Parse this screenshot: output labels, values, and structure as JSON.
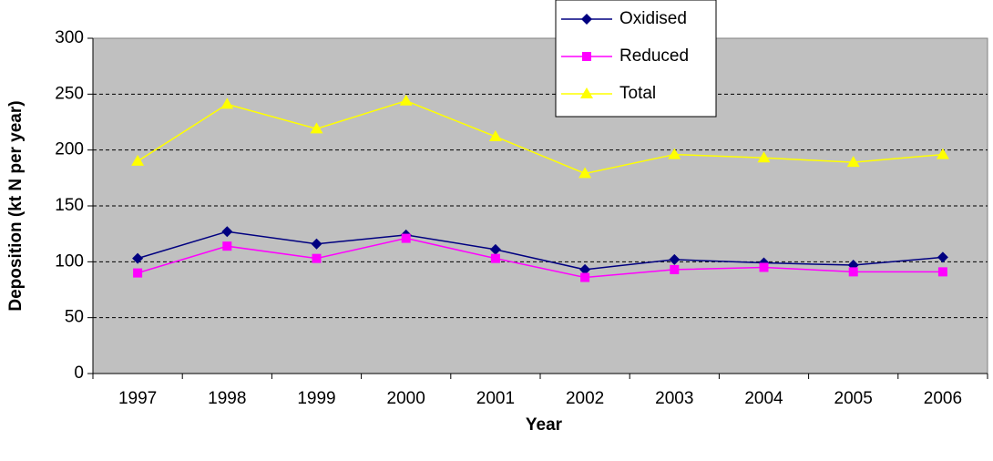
{
  "chart_data": {
    "type": "line",
    "categories": [
      "1997",
      "1998",
      "1999",
      "2000",
      "2001",
      "2002",
      "2003",
      "2004",
      "2005",
      "2006"
    ],
    "series": [
      {
        "name": "Oxidised",
        "color": "#000080",
        "marker": "diamond",
        "values": [
          103,
          127,
          116,
          124,
          111,
          93,
          102,
          99,
          97,
          104
        ]
      },
      {
        "name": "Reduced",
        "color": "#ff00ff",
        "marker": "square",
        "values": [
          90,
          114,
          103,
          121,
          103,
          86,
          93,
          95,
          91,
          91
        ]
      },
      {
        "name": "Total",
        "color": "#ffff00",
        "marker": "triangle",
        "values": [
          190,
          241,
          219,
          244,
          212,
          179,
          196,
          193,
          189,
          196
        ]
      }
    ],
    "xlabel": "Year",
    "ylabel": "Deposition (kt N per year)",
    "ylim": [
      0,
      300
    ],
    "yticks": [
      0,
      50,
      100,
      150,
      200,
      250,
      300
    ],
    "grid": true,
    "legend": "upper center",
    "background": "#c0c0c0"
  }
}
